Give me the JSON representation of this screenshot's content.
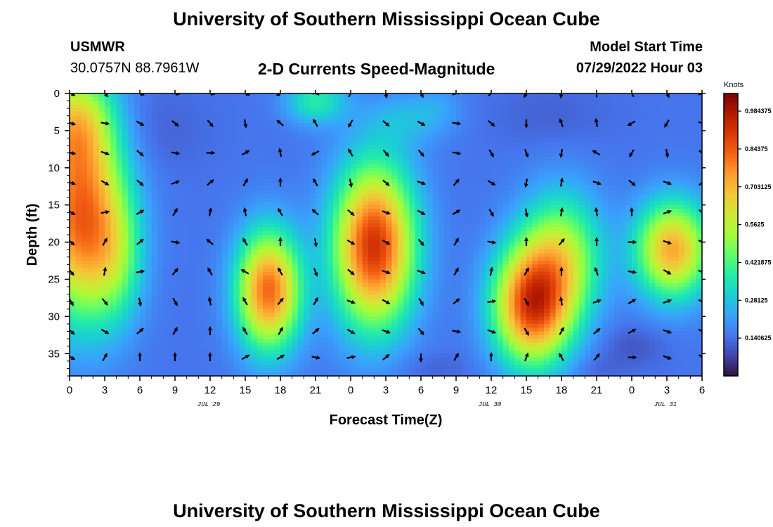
{
  "header": {
    "title": "University of Southern Mississippi Ocean Cube",
    "station": "USMWR",
    "coords": "30.0757N  88.7961W",
    "subtitle": "2-D Currents Speed-Magnitude",
    "model_label": "Model Start Time",
    "model_time": "07/29/2022 Hour 03"
  },
  "footer": {
    "title": "University of Southern Mississippi Ocean Cube"
  },
  "colors": {
    "colormap": [
      "#30123b",
      "#4145ab",
      "#4675ed",
      "#39a2fc",
      "#1bcfd4",
      "#24eca6",
      "#61fc6c",
      "#a4fc3b",
      "#d1e834",
      "#f3c63a",
      "#fe9b2d",
      "#f36315",
      "#d93806",
      "#b11901",
      "#7a0403"
    ]
  },
  "chart_data": {
    "type": "heatmap",
    "title": "2-D Currents Speed-Magnitude",
    "xlabel": "Forecast Time(Z)",
    "ylabel": "Depth (ft)",
    "x_range": [
      0,
      54
    ],
    "y_range": [
      0,
      38
    ],
    "x_ticks": [
      0,
      3,
      6,
      9,
      12,
      15,
      18,
      21,
      24,
      27,
      30,
      33,
      36,
      39,
      42,
      45,
      48,
      51,
      54
    ],
    "x_tick_labels": [
      "0",
      "3",
      "6",
      "9",
      "12",
      "15",
      "18",
      "21",
      "0",
      "3",
      "6",
      "9",
      "12",
      "15",
      "18",
      "21",
      "0",
      "3",
      "6"
    ],
    "y_ticks": [
      0,
      5,
      10,
      15,
      20,
      25,
      30,
      35
    ],
    "y_tick_labels": [
      "0",
      "5",
      "10",
      "15",
      "20",
      "25",
      "30",
      "35"
    ],
    "date_labels": [
      {
        "x": 12,
        "label": "JUL 29"
      },
      {
        "x": 36,
        "label": "JUL 30"
      },
      {
        "x": 51,
        "label": "JUL 31"
      }
    ],
    "colorbar": {
      "unit": "Knots",
      "range": [
        0,
        1.05
      ],
      "ticks": [
        0.140625,
        0.28125,
        0.421875,
        0.5625,
        0.703125,
        0.84375,
        0.984375
      ],
      "tick_labels": [
        "0.140625",
        "0.28125",
        "0.421875",
        "0.5625",
        "0.703125",
        "0.84375",
        "0.984375"
      ]
    },
    "speed_blobs": [
      {
        "x": 1,
        "y": 17,
        "sx": 2.6,
        "sy": 9,
        "v": 0.85
      },
      {
        "x": 0.5,
        "y": 4,
        "sx": 2.2,
        "sy": 5,
        "v": 0.55
      },
      {
        "x": 4,
        "y": 22,
        "sx": 1.6,
        "sy": 6,
        "v": 0.35
      },
      {
        "x": 17,
        "y": 26.5,
        "sx": 1.9,
        "sy": 5.5,
        "v": 0.85
      },
      {
        "x": 26,
        "y": 20.5,
        "sx": 2.4,
        "sy": 7.5,
        "v": 0.95
      },
      {
        "x": 39.5,
        "y": 28.5,
        "sx": 2.3,
        "sy": 5.5,
        "v": 0.9
      },
      {
        "x": 42,
        "y": 22,
        "sx": 2.4,
        "sy": 6,
        "v": 0.55
      },
      {
        "x": 51.5,
        "y": 21,
        "sx": 2.2,
        "sy": 4.5,
        "v": 0.75
      },
      {
        "x": 21,
        "y": 1,
        "sx": 1.8,
        "sy": 2.2,
        "v": 0.38
      },
      {
        "x": 29,
        "y": 3.5,
        "sx": 2.5,
        "sy": 2.5,
        "v": 0.25
      },
      {
        "x": 31.5,
        "y": 1.5,
        "sx": 1.5,
        "sy": 2,
        "v": 0.2
      },
      {
        "x": 41,
        "y": 3,
        "sx": 3.5,
        "sy": 3,
        "v": 0.12
      },
      {
        "x": 7.5,
        "y": 5,
        "sx": 3,
        "sy": 4,
        "v": 0.12
      },
      {
        "x": 31,
        "y": 37,
        "sx": 2.5,
        "sy": 1.5,
        "v": 0.12
      },
      {
        "x": 48,
        "y": 34,
        "sx": 2,
        "sy": 2,
        "v": 0.1
      },
      {
        "x": 45,
        "y": 37,
        "sx": 1.5,
        "sy": 1.2,
        "v": 0.12
      }
    ],
    "base_speed": 0.15,
    "arrow_angles_deg": [
      [
        30,
        45,
        20,
        10,
        10,
        20,
        150,
        -160,
        -60,
        80,
        60,
        -20,
        -40,
        120,
        100,
        -90,
        -120,
        60,
        -20
      ],
      [
        20,
        10,
        30,
        40,
        50,
        80,
        -140,
        -120,
        120,
        40,
        30,
        10,
        40,
        90,
        -110,
        -100,
        150,
        120,
        20
      ],
      [
        10,
        20,
        40,
        10,
        0,
        -30,
        -100,
        150,
        -120,
        50,
        50,
        10,
        60,
        70,
        100,
        -150,
        120,
        80,
        40
      ],
      [
        20,
        30,
        40,
        -20,
        -40,
        -60,
        -90,
        -120,
        80,
        40,
        20,
        -50,
        30,
        100,
        -80,
        20,
        40,
        20,
        -40
      ],
      [
        30,
        -10,
        -30,
        -60,
        -80,
        -100,
        -120,
        -140,
        40,
        20,
        30,
        -30,
        60,
        80,
        -80,
        -100,
        -90,
        -20,
        40
      ],
      [
        40,
        -60,
        -40,
        10,
        -140,
        -120,
        -90,
        80,
        30,
        30,
        50,
        -60,
        10,
        -90,
        -50,
        -90,
        0,
        20,
        30
      ],
      [
        50,
        -80,
        -10,
        -50,
        -120,
        -150,
        -120,
        70,
        40,
        20,
        20,
        -60,
        -80,
        -60,
        -90,
        -110,
        10,
        30,
        20
      ],
      [
        60,
        50,
        80,
        60,
        -100,
        -120,
        -50,
        -60,
        20,
        30,
        60,
        -40,
        -10,
        60,
        -100,
        -20,
        -30,
        -20,
        30
      ],
      [
        40,
        30,
        -40,
        -60,
        -90,
        -120,
        -60,
        -40,
        30,
        20,
        50,
        10,
        20,
        60,
        -60,
        -40,
        -30,
        20,
        30
      ],
      [
        30,
        -60,
        -90,
        -90,
        -90,
        -30,
        -30,
        10,
        -10,
        -40,
        90,
        -60,
        -90,
        -70,
        -120,
        -50,
        0,
        20,
        40
      ]
    ],
    "y_rows": [
      0,
      4,
      8,
      12,
      16,
      20,
      24,
      28,
      32,
      35.5
    ]
  }
}
